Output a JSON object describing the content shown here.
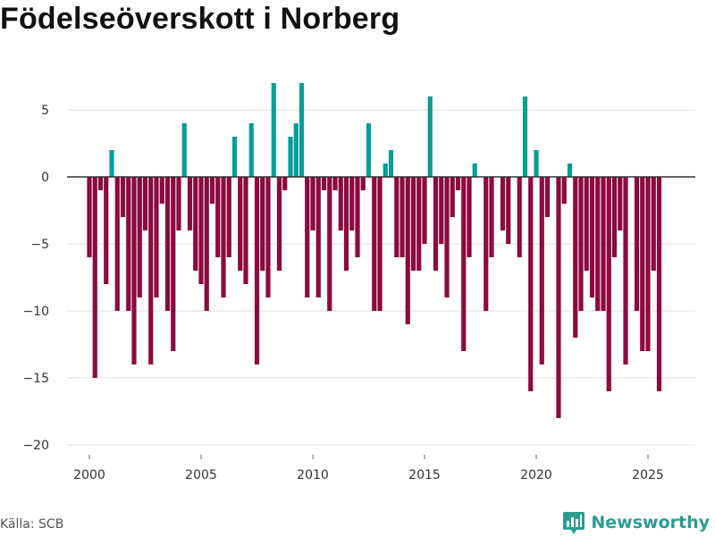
{
  "title": "Födelseöverskott i Norberg",
  "source": "Källa: SCB",
  "brand": {
    "name": "Newsworthy",
    "icon": "newsworthy-logo-icon"
  },
  "colors": {
    "positive": "#0a9d98",
    "negative": "#8c0a3e",
    "grid": "#dddddd",
    "zero": "#333333"
  },
  "chart_data": {
    "type": "bar",
    "title": "Födelseöverskott i Norberg",
    "xlabel": "",
    "ylabel": "",
    "x_ticks": [
      "2000",
      "2005",
      "2010",
      "2015",
      "2020",
      "2025"
    ],
    "y_ticks": [
      "5",
      "0",
      "−5",
      "−10",
      "−15",
      "−20"
    ],
    "xlim": [
      1999.0,
      2027.0
    ],
    "ylim": [
      -21,
      8.5
    ],
    "grid": true,
    "legend": "none",
    "start": 2000.0,
    "step": 0.25,
    "values": [
      -6,
      -15,
      -1,
      -8,
      2,
      -10,
      -3,
      -10,
      -14,
      -9,
      -4,
      -14,
      -9,
      -2,
      -10,
      -13,
      -4,
      4,
      -4,
      -7,
      -8,
      -10,
      -2,
      -6,
      -9,
      -6,
      3,
      -7,
      -8,
      4,
      -14,
      -7,
      -9,
      7,
      -7,
      -1,
      3,
      4,
      7,
      -9,
      -4,
      -9,
      -1,
      -10,
      -1,
      -4,
      -7,
      -4,
      -6,
      -1,
      4,
      -10,
      -10,
      1,
      2,
      -6,
      -6,
      -11,
      -7,
      -7,
      -5,
      6,
      -7,
      -5,
      -9,
      -3,
      -1,
      -13,
      -6,
      1,
      0,
      -10,
      -6,
      0,
      -4,
      -5,
      0,
      -6,
      6,
      -16,
      2,
      -14,
      -3,
      0,
      -18,
      -2,
      1,
      -12,
      -10,
      -7,
      -9,
      -10,
      -10,
      -16,
      -6,
      -4,
      -14,
      0,
      -10,
      -13,
      -13,
      -7,
      -16
    ]
  }
}
